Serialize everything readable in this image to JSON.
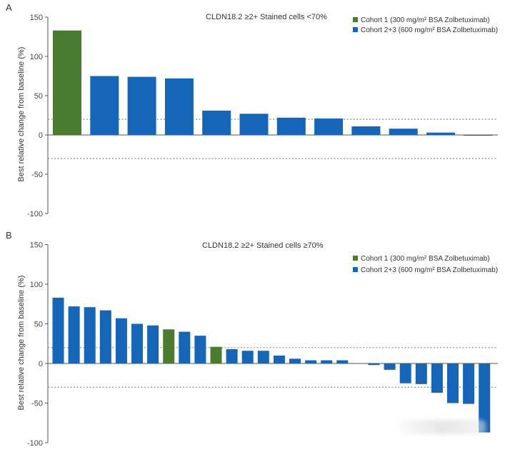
{
  "colors": {
    "cohort1": "#4a7c2f",
    "cohort23": "#1565b8",
    "axis": "#555555",
    "dotted": "#888888"
  },
  "chart_data": [
    {
      "type": "bar",
      "panel": "A",
      "title": "CLDN18.2 ≥2+ Stained cells <70%",
      "ylabel": "Best relative change from baseline (%)",
      "ylim": [
        -100,
        150
      ],
      "yticks": [
        150,
        100,
        50,
        0,
        -50,
        -100
      ],
      "reference_lines": [
        20,
        -30
      ],
      "legend": [
        {
          "label": "Cohort 1 (300 mg/m² BSA Zolbetuximab)",
          "color": "#4a7c2f"
        },
        {
          "label": "Cohort 2+3 (600 mg/m² BSA Zolbetuximab)",
          "color": "#1565b8"
        }
      ],
      "series": [
        {
          "name": "Cohort 1 (300 mg/m² BSA Zolbetuximab)",
          "values": [
            133,
            null,
            null,
            null,
            null,
            null,
            null,
            null,
            null,
            null,
            null,
            null
          ]
        },
        {
          "name": "Cohort 2+3 (600 mg/m² BSA Zolbetuximab)",
          "values": [
            null,
            75,
            74,
            72,
            31,
            27,
            22,
            21,
            11,
            8,
            3,
            -1
          ]
        }
      ]
    },
    {
      "type": "bar",
      "panel": "B",
      "title": "CLDN18.2 ≥2+ Stained cells ≥70%",
      "ylabel": "Best relative change from baseline (%)",
      "ylim": [
        -100,
        150
      ],
      "yticks": [
        150,
        100,
        50,
        0,
        -50,
        -100
      ],
      "reference_lines": [
        20,
        -30
      ],
      "legend": [
        {
          "label": "Cohort 1 (300 mg/m² BSA Zolbetuximab)",
          "color": "#4a7c2f"
        },
        {
          "label": "Cohort 2+3 (600 mg/m² BSA Zolbetuximab)",
          "color": "#1565b8"
        }
      ],
      "bars": [
        {
          "value": 83,
          "cohort": 2
        },
        {
          "value": 72,
          "cohort": 2
        },
        {
          "value": 71,
          "cohort": 2
        },
        {
          "value": 67,
          "cohort": 2
        },
        {
          "value": 57,
          "cohort": 2
        },
        {
          "value": 50,
          "cohort": 2
        },
        {
          "value": 48,
          "cohort": 2
        },
        {
          "value": 43,
          "cohort": 1
        },
        {
          "value": 40,
          "cohort": 2
        },
        {
          "value": 35,
          "cohort": 2
        },
        {
          "value": 21,
          "cohort": 1
        },
        {
          "value": 18,
          "cohort": 2
        },
        {
          "value": 16,
          "cohort": 2
        },
        {
          "value": 16,
          "cohort": 2
        },
        {
          "value": 10,
          "cohort": 2
        },
        {
          "value": 6,
          "cohort": 2
        },
        {
          "value": 4,
          "cohort": 2
        },
        {
          "value": 4,
          "cohort": 2
        },
        {
          "value": 4,
          "cohort": 2
        },
        {
          "value": 0,
          "cohort": 2
        },
        {
          "value": -2,
          "cohort": 2
        },
        {
          "value": -8,
          "cohort": 2
        },
        {
          "value": -25,
          "cohort": 2
        },
        {
          "value": -26,
          "cohort": 2
        },
        {
          "value": -37,
          "cohort": 2
        },
        {
          "value": -50,
          "cohort": 2
        },
        {
          "value": -51,
          "cohort": 2
        },
        {
          "value": -87,
          "cohort": 2
        }
      ]
    }
  ]
}
